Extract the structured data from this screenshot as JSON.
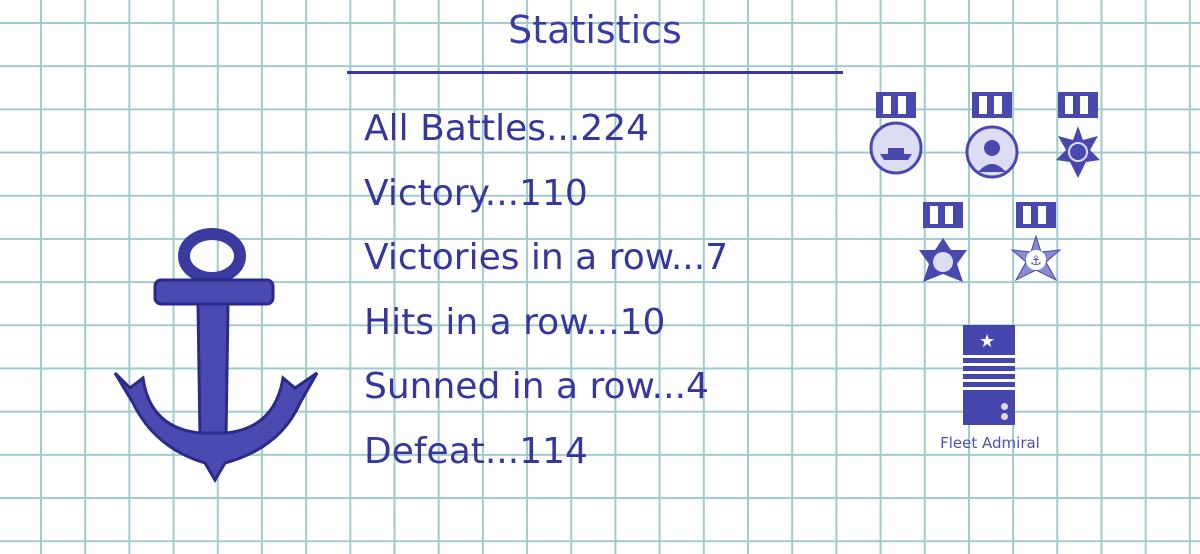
{
  "header": {
    "title": "Statistics"
  },
  "stats": [
    {
      "label": "All Battles...224"
    },
    {
      "label": "Victory...110"
    },
    {
      "label": "Victories in a row...7"
    },
    {
      "label": "Hits in a row...10"
    },
    {
      "label": "Sunned in a row...4"
    },
    {
      "label": "Defeat...114"
    }
  ],
  "medals": [
    "ship-medal-icon",
    "officer-medal-icon",
    "crosshair-star-medal-icon",
    "skull-cross-medal-icon",
    "anchor-star-medal-icon"
  ],
  "rank": {
    "name": "Fleet Admiral",
    "icon": "fleet-admiral-shoulder-board-icon"
  },
  "colors": {
    "ink": "#34349e",
    "grid": "#9fcbcb"
  }
}
